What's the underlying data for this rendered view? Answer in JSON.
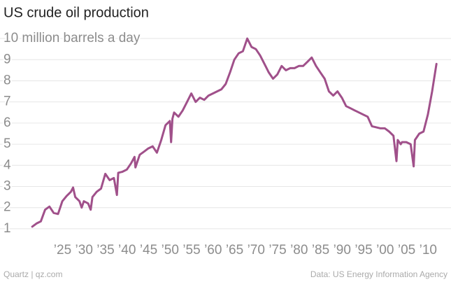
{
  "chart_data": {
    "type": "line",
    "title": "US crude oil production",
    "source": "Data: US Energy Information Agency",
    "credit": "Quartz | qz.com",
    "color": "#a0508a",
    "grid": true,
    "x": [
      1920,
      1921,
      1922,
      1923,
      1924,
      1925,
      1926,
      1927,
      1928,
      1929,
      1929.5,
      1930,
      1931,
      1931.5,
      1932,
      1933,
      1933.6,
      1934,
      1935,
      1936,
      1937,
      1938,
      1939,
      1939.7,
      1940,
      1941,
      1942,
      1943,
      1943.8,
      1944,
      1945,
      1946,
      1947,
      1948,
      1949,
      1950,
      1951,
      1952,
      1952.3,
      1952.6,
      1953,
      1954,
      1955,
      1956,
      1957,
      1958,
      1959,
      1960,
      1961,
      1962,
      1963,
      1964,
      1965,
      1966,
      1967,
      1968,
      1969,
      1970,
      1971,
      1972,
      1973,
      1974,
      1975,
      1976,
      1977,
      1978,
      1979,
      1980,
      1981,
      1982,
      1983,
      1984,
      1985,
      1986,
      1987,
      1988,
      1989,
      1990,
      1991,
      1992,
      1993,
      1994,
      1995,
      1996,
      1997,
      1998,
      1999,
      2000,
      2001,
      2002,
      2003,
      2004,
      2004.7,
      2005,
      2005.7,
      2006,
      2007,
      2008,
      2008.7,
      2009,
      2010,
      2011,
      2012,
      2013,
      2014
    ],
    "values": [
      1.1,
      1.25,
      1.35,
      1.9,
      2.05,
      1.75,
      1.7,
      2.3,
      2.55,
      2.75,
      2.95,
      2.5,
      2.3,
      2.0,
      2.3,
      2.2,
      1.9,
      2.5,
      2.75,
      2.9,
      3.6,
      3.3,
      3.4,
      2.6,
      3.65,
      3.7,
      3.8,
      4.1,
      4.4,
      3.9,
      4.5,
      4.65,
      4.8,
      4.9,
      4.6,
      5.2,
      5.9,
      6.1,
      5.1,
      6.2,
      6.5,
      6.3,
      6.6,
      7.0,
      7.4,
      7.0,
      7.2,
      7.1,
      7.3,
      7.4,
      7.5,
      7.6,
      7.85,
      8.4,
      9.0,
      9.3,
      9.4,
      10.0,
      9.6,
      9.5,
      9.2,
      8.8,
      8.4,
      8.1,
      8.3,
      8.7,
      8.5,
      8.6,
      8.6,
      8.7,
      8.7,
      8.9,
      9.1,
      8.7,
      8.4,
      8.1,
      7.5,
      7.3,
      7.5,
      7.2,
      6.8,
      6.7,
      6.6,
      6.5,
      6.4,
      6.3,
      5.85,
      5.8,
      5.75,
      5.75,
      5.6,
      5.4,
      4.2,
      5.2,
      5.0,
      5.1,
      5.1,
      5.0,
      3.95,
      5.2,
      5.5,
      5.6,
      6.4,
      7.5,
      8.8
    ],
    "xlim": [
      1917,
      2016
    ],
    "ylim": [
      0.6,
      10.3
    ],
    "xticks": [
      {
        "value": 1925,
        "label": "’25"
      },
      {
        "value": 1930,
        "label": "’30"
      },
      {
        "value": 1935,
        "label": "’35"
      },
      {
        "value": 1940,
        "label": "’40"
      },
      {
        "value": 1945,
        "label": "’45"
      },
      {
        "value": 1950,
        "label": "’50"
      },
      {
        "value": 1955,
        "label": "’55"
      },
      {
        "value": 1960,
        "label": "’60"
      },
      {
        "value": 1965,
        "label": "’65"
      },
      {
        "value": 1970,
        "label": "’70"
      },
      {
        "value": 1975,
        "label": "’75"
      },
      {
        "value": 1980,
        "label": "’80"
      },
      {
        "value": 1985,
        "label": "’85"
      },
      {
        "value": 1990,
        "label": "’90"
      },
      {
        "value": 1995,
        "label": "’95"
      },
      {
        "value": 2000,
        "label": "’00"
      },
      {
        "value": 2005,
        "label": "’05"
      },
      {
        "value": 2010,
        "label": "’10"
      }
    ],
    "yticks": [
      1,
      2,
      3,
      4,
      5,
      6,
      7,
      8,
      9,
      {
        "value": 10,
        "label": "10 million barrels a day"
      }
    ]
  }
}
